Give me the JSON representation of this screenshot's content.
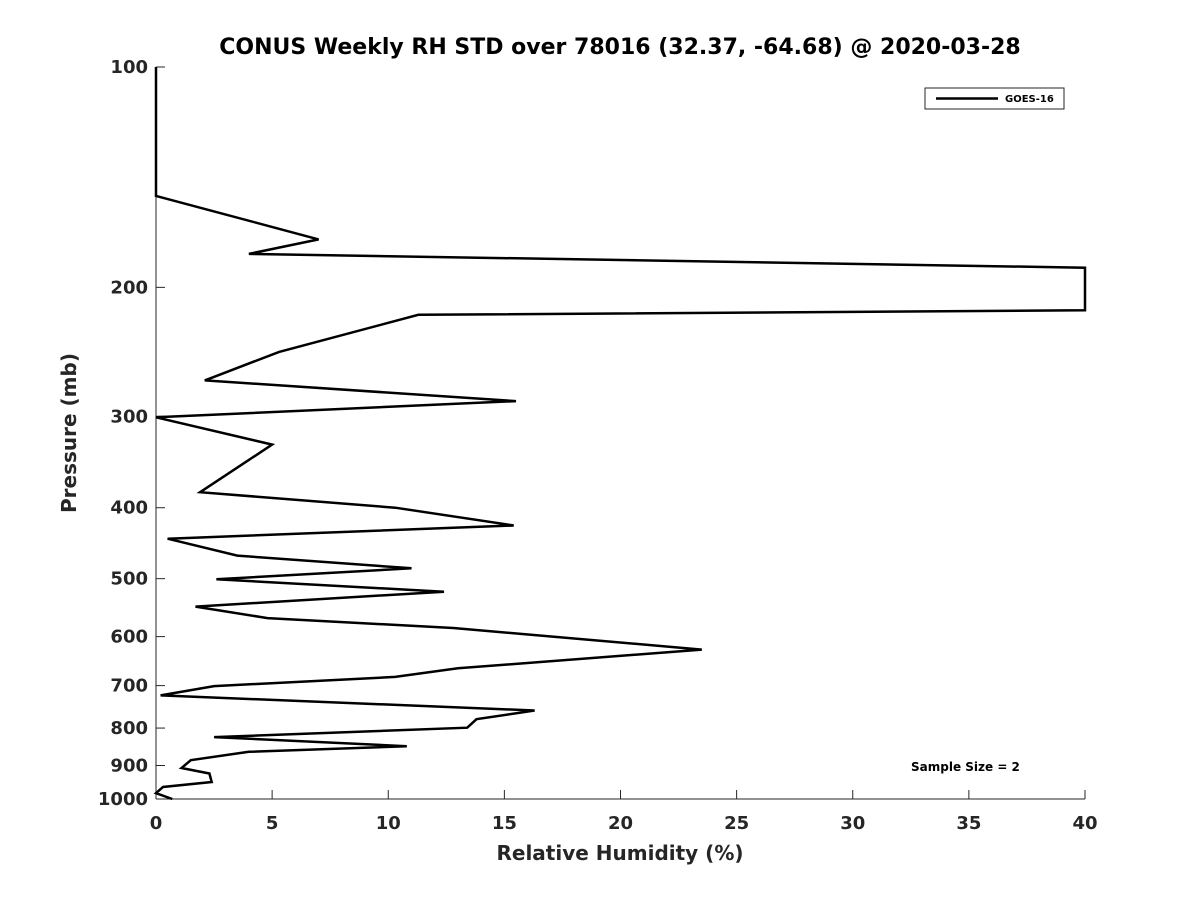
{
  "chart_data": {
    "type": "line",
    "title": "CONUS Weekly RH STD over 78016 (32.37, -64.68) @ 2020-03-28",
    "xlabel": "Relative Humidity (%)",
    "ylabel": "Pressure (mb)",
    "xlim": [
      0,
      40
    ],
    "ylim": [
      1000,
      100
    ],
    "y_scale": "log",
    "y_reversed": true,
    "x_ticks": [
      0,
      5,
      10,
      15,
      20,
      25,
      30,
      35,
      40
    ],
    "x_tick_labels": [
      "0",
      "5",
      "10",
      "15",
      "20",
      "25",
      "30",
      "35",
      "40"
    ],
    "y_ticks": [
      100,
      200,
      300,
      400,
      500,
      600,
      700,
      800,
      900,
      1000
    ],
    "y_tick_labels": [
      "100",
      "200",
      "300",
      "400",
      "500",
      "600",
      "700",
      "800",
      "900",
      "1000"
    ],
    "grid": false,
    "legend_position": "top-right",
    "annotation": "Sample Size = 2",
    "series": [
      {
        "name": "GOES-16",
        "color": "#000000",
        "points": [
          [
            0.0,
            100
          ],
          [
            0.0,
            150
          ],
          [
            7.0,
            172
          ],
          [
            4.0,
            180
          ],
          [
            40.0,
            188
          ],
          [
            40.0,
            215
          ],
          [
            11.3,
            218
          ],
          [
            5.3,
            245
          ],
          [
            2.1,
            268
          ],
          [
            15.5,
            286
          ],
          [
            0.0,
            301
          ],
          [
            5.0,
            328
          ],
          [
            1.9,
            381
          ],
          [
            10.3,
            400
          ],
          [
            15.4,
            423
          ],
          [
            0.5,
            441
          ],
          [
            3.5,
            465
          ],
          [
            11.0,
            484
          ],
          [
            2.6,
            501
          ],
          [
            12.4,
            521
          ],
          [
            1.7,
            546
          ],
          [
            4.8,
            566
          ],
          [
            12.8,
            584
          ],
          [
            23.5,
            625
          ],
          [
            13.0,
            663
          ],
          [
            10.3,
            681
          ],
          [
            2.5,
            701
          ],
          [
            0.2,
            722
          ],
          [
            16.3,
            757
          ],
          [
            13.8,
            778
          ],
          [
            13.4,
            799
          ],
          [
            2.5,
            823
          ],
          [
            10.8,
            847
          ],
          [
            4.0,
            862
          ],
          [
            1.5,
            885
          ],
          [
            1.1,
            907
          ],
          [
            2.3,
            923
          ],
          [
            2.4,
            948
          ],
          [
            0.3,
            963
          ],
          [
            0.0,
            982
          ],
          [
            0.7,
            1000
          ]
        ]
      }
    ]
  }
}
